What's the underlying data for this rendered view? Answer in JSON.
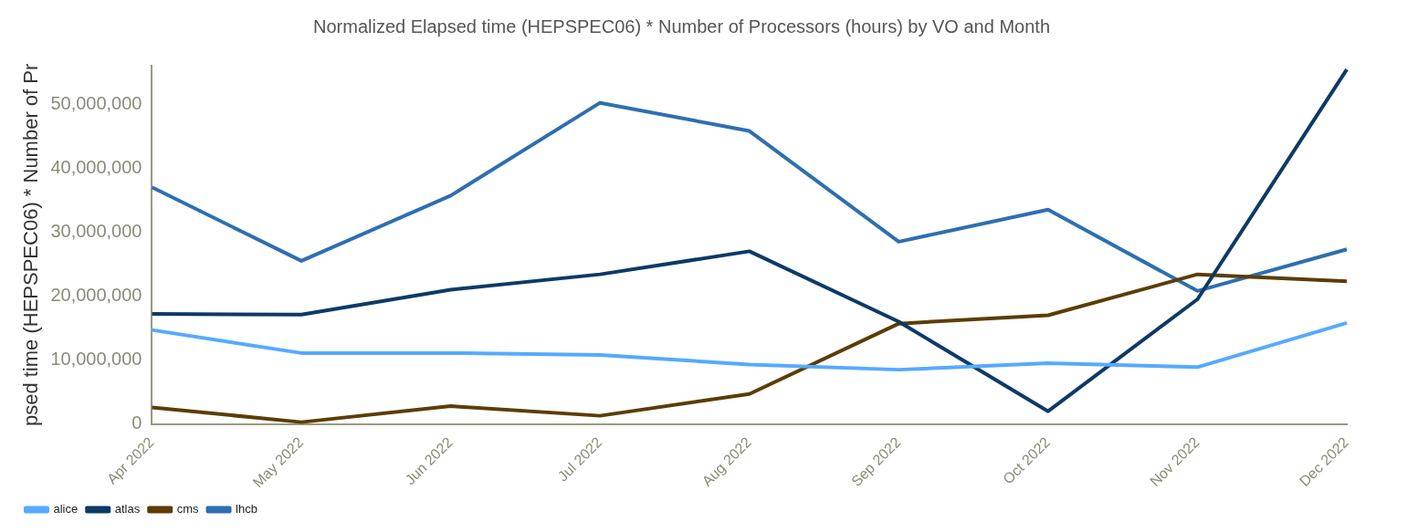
{
  "chart_data": {
    "type": "line",
    "title": "Normalized Elapsed time (HEPSPEC06) * Number of Processors (hours) by VO and Month",
    "ylabel": "psed time (HEPSPEC06) * Number of Pr",
    "categories": [
      "Apr 2022",
      "May 2022",
      "Jun 2022",
      "Jul 2022",
      "Aug 2022",
      "Sep 2022",
      "Oct 2022",
      "Nov 2022",
      "Dec 2022"
    ],
    "series": [
      {
        "name": "alice",
        "color": "#55aaff",
        "values": [
          14700000,
          11100000,
          11100000,
          10800000,
          9300000,
          8500000,
          9500000,
          8900000,
          15800000
        ]
      },
      {
        "name": "atlas",
        "color": "#0d3a66",
        "values": [
          17200000,
          17100000,
          21000000,
          23400000,
          27000000,
          16000000,
          2000000,
          19500000,
          55400000
        ]
      },
      {
        "name": "cms",
        "color": "#5c3d05",
        "values": [
          2600000,
          300000,
          2800000,
          1300000,
          4700000,
          15700000,
          17000000,
          23400000,
          22300000
        ]
      },
      {
        "name": "lhcb",
        "color": "#2e6fb0",
        "values": [
          37000000,
          25500000,
          35700000,
          50200000,
          45800000,
          28500000,
          33500000,
          20800000,
          27300000
        ]
      }
    ],
    "ylim": [
      0,
      56000000
    ],
    "yticks": [
      0,
      {
        "value": 10000000,
        "label": "10,000,000"
      },
      {
        "value": 20000000,
        "label": "20,000,000"
      },
      {
        "value": 30000000,
        "label": "30,000,000"
      },
      {
        "value": 40000000,
        "label": "40,000,000"
      },
      {
        "value": 50000000,
        "label": "50,000,000"
      }
    ],
    "grid": false,
    "legend": "bottom left",
    "marker": "none",
    "line_style": "solid"
  }
}
